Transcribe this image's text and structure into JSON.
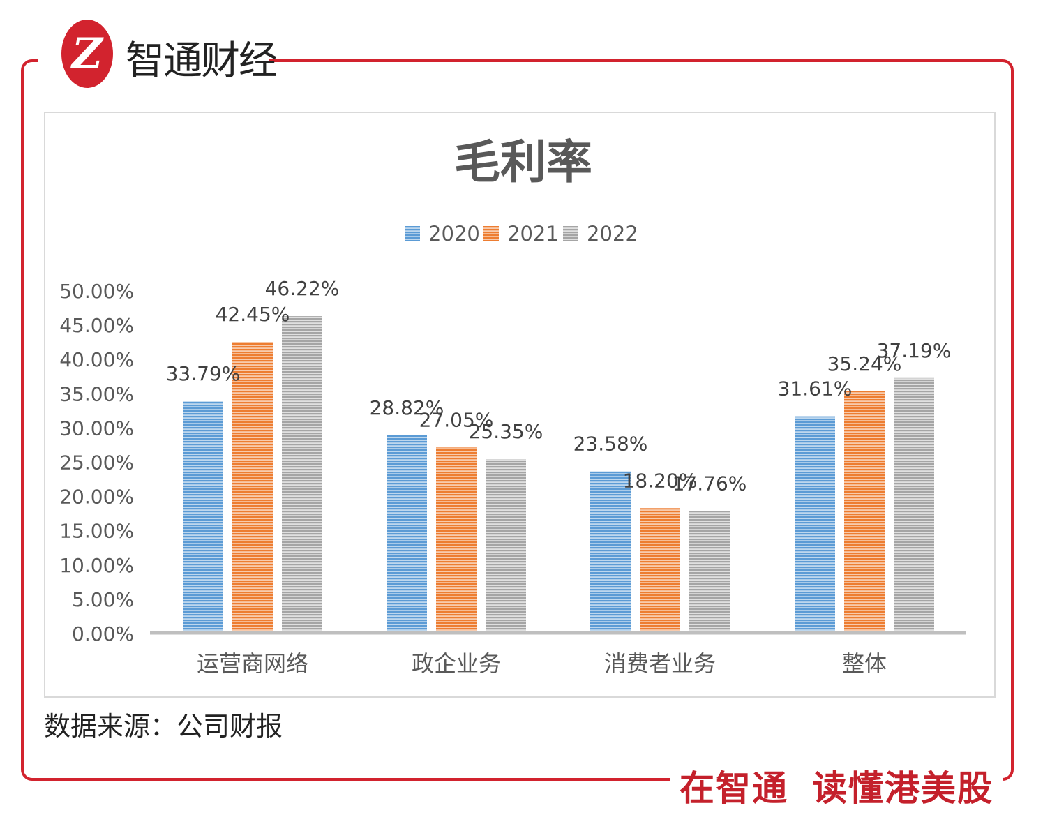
{
  "brand": {
    "logo_text": "智通财经",
    "logo_mark": "Z",
    "slogan_1": "在智通",
    "slogan_2": "读懂港美股"
  },
  "source": "数据来源：公司财报",
  "colors": {
    "brand_red": "#d2232e",
    "2020": "#5b9bd5",
    "2021": "#ed7d31",
    "2022": "#a5a5a5"
  },
  "chart_data": {
    "type": "bar",
    "title": "毛利率",
    "categories": [
      "运营商网络",
      "政企业务",
      "消费者业务",
      "整体"
    ],
    "series": [
      {
        "name": "2020",
        "values": [
          33.79,
          28.82,
          23.58,
          31.61
        ],
        "labels": [
          "33.79%",
          "28.82%",
          "23.58%",
          "31.61%"
        ]
      },
      {
        "name": "2021",
        "values": [
          42.45,
          27.05,
          18.2,
          35.24
        ],
        "labels": [
          "42.45%",
          "27.05%",
          "18.20%",
          "35.24%"
        ]
      },
      {
        "name": "2022",
        "values": [
          46.22,
          25.35,
          17.76,
          37.19
        ],
        "labels": [
          "46.22%",
          "25.35%",
          "17.76%",
          "37.19%"
        ]
      }
    ],
    "ylim": [
      0,
      50
    ],
    "yticks": [
      "0.00%",
      "5.00%",
      "10.00%",
      "15.00%",
      "20.00%",
      "25.00%",
      "30.00%",
      "35.00%",
      "40.00%",
      "45.00%",
      "50.00%"
    ],
    "legend": "top",
    "grid": false,
    "bar_pattern": "horizontal-stripes"
  }
}
